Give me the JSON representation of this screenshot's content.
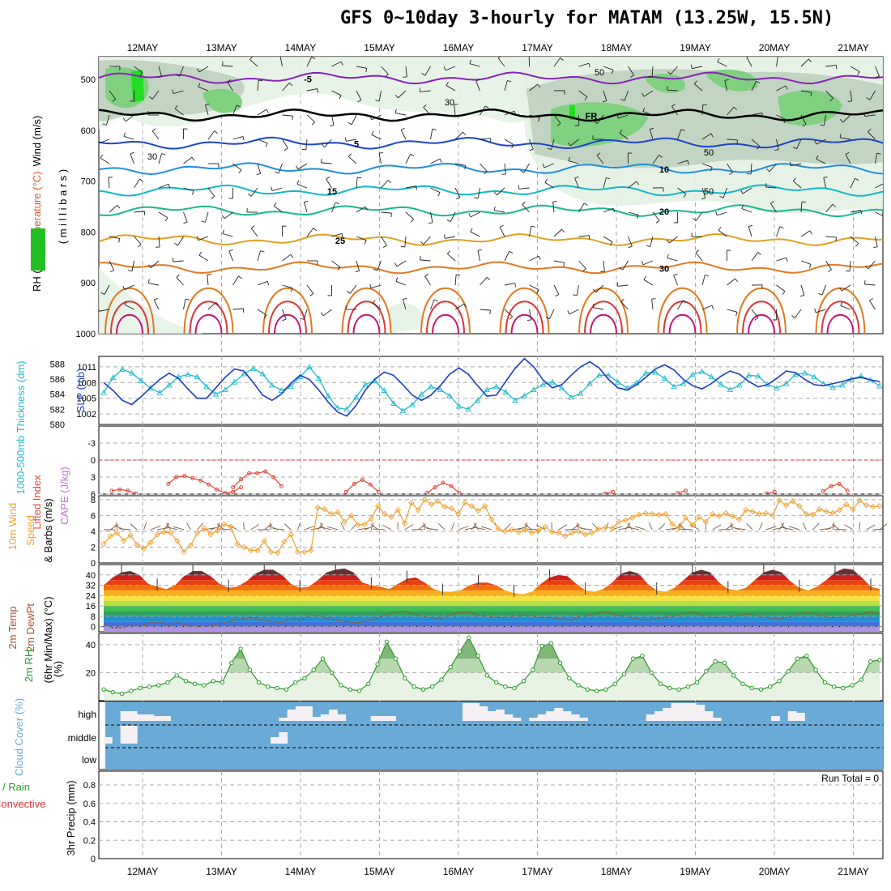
{
  "title": "GFS 0~10day 3-hourly for MATAM (13.25W, 15.5N)",
  "colors": {
    "rh_light": "#e4f1e4",
    "rh_mid": "#b9ccb9",
    "rh_dark": "#7fd07f",
    "rh_bright": "#22dd22",
    "slp": "#1c3cc8",
    "thickness": "#22bbcc",
    "lifted": "#e0483c",
    "cape": "#c070d0",
    "wind10": "#f0a030",
    "barb10": "#7a5a40",
    "rh2m": "#2a9a2a",
    "cloud": "#6aaad6",
    "precip_label": "#2a9a2a",
    "precip_conv": "#e03030"
  },
  "chart_data": [
    {
      "id": "upper-air",
      "type": "contour",
      "ylabel_parts": [
        "RH (%)",
        "Temperature (°C)",
        "Wind (m/s)"
      ],
      "ylabel_unit": "( m i l l i b a r s )",
      "date_labels": [
        "12MAY",
        "13MAY",
        "14MAY",
        "15MAY",
        "16MAY",
        "17MAY",
        "18MAY",
        "19MAY",
        "20MAY",
        "21MAY"
      ],
      "y_ticks": [
        500,
        600,
        700,
        800,
        900,
        1000
      ],
      "ylim": [
        455,
        1000
      ],
      "temperature_contours": [
        {
          "label": "-5",
          "level_mb": 497,
          "color": "#8822bb"
        },
        {
          "label": "FR",
          "level_mb": 570,
          "color": "#000000"
        },
        {
          "label": "5",
          "level_mb": 625,
          "color": "#1a44cc"
        },
        {
          "label": "10",
          "level_mb": 675,
          "color": "#1e90dd"
        },
        {
          "label": "15",
          "level_mb": 718,
          "color": "#10b8c8"
        },
        {
          "label": "20",
          "level_mb": 758,
          "color": "#18b890"
        },
        {
          "label": "25",
          "level_mb": 815,
          "color": "#e0a020"
        },
        {
          "label": "30",
          "level_mb": 870,
          "color": "#e07a20"
        }
      ],
      "rh_contour_labels": [
        "30",
        "50",
        "50",
        "50",
        "30"
      ]
    },
    {
      "id": "slp-thickness",
      "type": "line",
      "ylabel_left": "1000-500mb Thickness (dm)",
      "ylabel_right": "SLP (mb)",
      "left_ticks": [
        580,
        582,
        584,
        586,
        588
      ],
      "right_ticks": [
        1002,
        1005,
        1008,
        1011
      ],
      "thickness_ylim": [
        580,
        589
      ],
      "slp_ylim": [
        1000,
        1013
      ],
      "series": [
        {
          "name": "Thickness",
          "values": [
            584.2,
            586.2,
            587.3,
            586.8,
            585.8,
            584.8,
            584.2,
            585.2,
            586.3,
            586.6,
            586.3,
            585.0,
            584.0,
            584.6,
            585.6,
            586.7,
            587.4,
            586.7,
            585.2,
            584.5,
            585.0,
            586.3,
            587.6,
            586.1,
            583.8,
            582.2,
            582.0,
            583.6,
            585.3,
            585.8,
            584.5,
            582.8,
            581.8,
            582.6,
            584.0,
            585.0,
            584.6,
            583.8,
            582.4,
            582.0,
            583.2,
            584.6,
            585.0,
            584.3,
            583.2,
            583.8,
            584.6,
            585.3,
            585.6,
            584.8,
            583.6,
            584.1,
            585.4,
            586.5,
            586.5,
            585.6,
            584.8,
            585.5,
            586.8,
            586.9,
            586.1,
            585.0,
            585.4,
            586.6,
            587.0,
            586.3,
            585.3,
            584.6,
            585.2,
            586.5,
            586.4,
            585.3,
            584.8,
            585.4,
            586.6,
            586.8,
            586.3,
            585.4,
            584.9,
            585.2,
            586.0,
            586.4,
            585.9,
            585.1
          ]
        },
        {
          "name": "SLP",
          "values": [
            1008.0,
            1006.5,
            1004.6,
            1003.8,
            1005.3,
            1007.0,
            1008.6,
            1009.8,
            1008.8,
            1006.8,
            1005.0,
            1005.0,
            1007.0,
            1009.0,
            1010.6,
            1010.2,
            1008.0,
            1005.6,
            1004.6,
            1005.8,
            1007.8,
            1009.4,
            1008.6,
            1006.6,
            1004.3,
            1002.4,
            1001.6,
            1003.6,
            1006.6,
            1008.6,
            1010.0,
            1009.4,
            1007.6,
            1005.6,
            1004.6,
            1005.6,
            1007.4,
            1009.6,
            1010.8,
            1009.6,
            1007.4,
            1005.4,
            1005.6,
            1008.2,
            1010.7,
            1012.6,
            1011.0,
            1008.5,
            1007.0,
            1007.6,
            1009.4,
            1011.0,
            1012.0,
            1010.8,
            1008.6,
            1007.0,
            1006.6,
            1007.6,
            1009.0,
            1010.6,
            1011.4,
            1010.4,
            1008.6,
            1007.4,
            1006.8,
            1007.8,
            1009.2,
            1010.2,
            1009.6,
            1008.2,
            1007.2,
            1007.6,
            1008.8,
            1010.2,
            1009.9,
            1008.6,
            1007.6,
            1007.4,
            1007.8,
            1008.2,
            1008.7,
            1009.0,
            1008.5,
            1008.2
          ]
        }
      ]
    },
    {
      "id": "stability",
      "type": "line",
      "ylabel_parts": [
        "Lifted Index",
        "CAPE (J/kg)"
      ],
      "y_ticks": [
        -3,
        0,
        3,
        6
      ],
      "ylim": [
        -6,
        6
      ],
      "inverted": true,
      "zero_line": 0,
      "segments": [
        {
          "name": "Lifted Index",
          "x": [
            1,
            2,
            3,
            4
          ],
          "values": [
            5.4,
            5.2,
            5.4,
            5.9
          ]
        },
        {
          "name": "Lifted Index",
          "x": [
            8,
            9,
            10,
            11,
            12,
            13,
            14,
            15,
            16,
            17
          ],
          "values": [
            4.2,
            3.0,
            2.8,
            3.2,
            3.6,
            4.3,
            5.2,
            5.8,
            5.6,
            4.8
          ]
        },
        {
          "name": "Lifted Index",
          "x": [
            16,
            17,
            18,
            19,
            20,
            21,
            22
          ],
          "values": [
            4.8,
            3.4,
            2.3,
            2.3,
            2.0,
            3.0,
            4.6
          ]
        },
        {
          "name": "Lifted Index",
          "x": [
            30,
            31,
            32,
            33,
            34
          ],
          "values": [
            5.6,
            4.2,
            3.5,
            4.3,
            5.6
          ]
        },
        {
          "name": "Lifted Index",
          "x": [
            40,
            41,
            42,
            43,
            44
          ],
          "values": [
            5.8,
            4.8,
            4.0,
            4.6,
            5.8
          ]
        },
        {
          "name": "Lifted Index",
          "x": [
            62,
            63
          ],
          "values": [
            5.9,
            5.6
          ]
        },
        {
          "name": "Lifted Index",
          "x": [
            71,
            72
          ],
          "values": [
            5.8,
            5.4
          ]
        },
        {
          "name": "Lifted Index",
          "x": [
            82,
            83
          ],
          "values": [
            5.9,
            5.6
          ]
        },
        {
          "name": "Lifted Index",
          "x": [
            89,
            90,
            91,
            92
          ],
          "values": [
            5.5,
            4.6,
            4.2,
            5.4
          ]
        }
      ]
    },
    {
      "id": "wind10m",
      "type": "line",
      "ylabel_parts": [
        "10m Wind",
        "Speed",
        "& Barbs (m/s)"
      ],
      "y_ticks": [
        0,
        2,
        4,
        6,
        8
      ],
      "ylim": [
        0,
        8.5
      ],
      "series": [
        {
          "name": "10m wind speed",
          "values": [
            2.4,
            3.4,
            3.8,
            2.8,
            3.5,
            2.3,
            1.8,
            2.6,
            3.6,
            3.9,
            3.8,
            2.8,
            1.4,
            2.2,
            3.8,
            4.4,
            3.6,
            4.1,
            4.9,
            4.6,
            2.4,
            2.0,
            1.6,
            1.6,
            2.8,
            1.4,
            1.3,
            2.7,
            3.6,
            1.4,
            1.4,
            1.6,
            7.0,
            6.8,
            6.2,
            6.4,
            5.2,
            6.0,
            4.8,
            4.9,
            5.6,
            7.2,
            6.2,
            5.8,
            6.7,
            5.0,
            7.6,
            6.7,
            8.0,
            7.4,
            7.8,
            7.1,
            6.9,
            6.2,
            7.6,
            7.2,
            6.6,
            7.2,
            5.5,
            4.3,
            4.0,
            4.2,
            3.9,
            4.2,
            3.8,
            4.1,
            4.6,
            3.9,
            3.8,
            3.4,
            3.8,
            4.0,
            3.6,
            3.8,
            4.3,
            4.5,
            4.4,
            5.2,
            5.4,
            5.7,
            6.1,
            6.3,
            6.2,
            6.1,
            6.2,
            4.9,
            4.4,
            5.7,
            4.8,
            5.8,
            5.2,
            6.2,
            5.9,
            6.3,
            5.9,
            5.5,
            6.7,
            6.5,
            6.2,
            6.3,
            6.0,
            7.9,
            7.3,
            7.8,
            7.2,
            6.2,
            6.1,
            6.8,
            6.5,
            6.3,
            6.7,
            7.4,
            6.8,
            7.9,
            7.3,
            7.1,
            7.2
          ]
        }
      ]
    },
    {
      "id": "temp2m",
      "type": "area",
      "ylabel_parts": [
        "2m Temp",
        "2m DewPt",
        "(6hr Min/Max) (°C)"
      ],
      "y_ticks": [
        0,
        8,
        16,
        24,
        32,
        40
      ],
      "ylim": [
        -4,
        48
      ],
      "series": [
        {
          "name": "2m Temp",
          "values": [
            32,
            38,
            42,
            43,
            40,
            33,
            31,
            29,
            32,
            39,
            43,
            43,
            39,
            33,
            30,
            31,
            35,
            41,
            44,
            44,
            40,
            33,
            30,
            31,
            36,
            42,
            44,
            45,
            42,
            34,
            32,
            31,
            29,
            33,
            37,
            38,
            34,
            29,
            27,
            27,
            28,
            32,
            34,
            34,
            32,
            28,
            26,
            25,
            27,
            33,
            38,
            40,
            39,
            33,
            28,
            27,
            29,
            34,
            41,
            43,
            41,
            33,
            28,
            27,
            30,
            36,
            42,
            44,
            42,
            34,
            29,
            28,
            30,
            36,
            42,
            44,
            42,
            35,
            30,
            28,
            31,
            36,
            42,
            45,
            44,
            38,
            31,
            29
          ]
        },
        {
          "name": "2m DewPt",
          "values": [
            2,
            -1,
            -1,
            1,
            1,
            3,
            3,
            2,
            3,
            1,
            0,
            0,
            2,
            3,
            5,
            6,
            7,
            5,
            4,
            3,
            6,
            5,
            8,
            9,
            6,
            5,
            4,
            3,
            4,
            6,
            9,
            11,
            12,
            10,
            8,
            7,
            6,
            9,
            11,
            11,
            9,
            8,
            7,
            7,
            8,
            9,
            8,
            7,
            7,
            6,
            5,
            8,
            9,
            11,
            11,
            9,
            8,
            6,
            5,
            6,
            7,
            8,
            10,
            11,
            9,
            7,
            7,
            8,
            9,
            10,
            8,
            7,
            6,
            7,
            9,
            11,
            10,
            8,
            7,
            7,
            9,
            10,
            11,
            10
          ]
        }
      ]
    },
    {
      "id": "rh2m",
      "type": "area",
      "ylabel_parts": [
        "2m RH",
        "(%)"
      ],
      "y_ticks": [
        20,
        40
      ],
      "ylim": [
        0,
        48
      ],
      "series": [
        {
          "name": "2m RH",
          "values": [
            8,
            6,
            5,
            7,
            9,
            10,
            11,
            13,
            18,
            14,
            12,
            11,
            14,
            13,
            27,
            37,
            22,
            13,
            10,
            9,
            8,
            13,
            16,
            22,
            30,
            20,
            11,
            8,
            7,
            12,
            26,
            42,
            30,
            16,
            10,
            8,
            10,
            15,
            24,
            35,
            45,
            32,
            18,
            13,
            10,
            9,
            14,
            22,
            39,
            41,
            27,
            16,
            11,
            8,
            7,
            8,
            12,
            19,
            30,
            32,
            20,
            12,
            9,
            8,
            10,
            13,
            21,
            28,
            27,
            18,
            12,
            9,
            8,
            10,
            14,
            21,
            30,
            32,
            22,
            13,
            10,
            9,
            11,
            15,
            28,
            29
          ]
        }
      ]
    },
    {
      "id": "cloud",
      "type": "bar",
      "ylabel": "Cloud Cover (%)",
      "level_labels": [
        "high",
        "middle",
        "low"
      ],
      "high_bars": [
        0,
        0,
        12,
        12,
        8,
        8,
        6,
        6,
        0,
        0,
        0,
        0,
        0,
        0,
        0,
        0,
        0,
        0,
        0,
        0,
        0,
        4,
        14,
        18,
        18,
        5,
        8,
        14,
        8,
        0,
        0,
        0,
        6,
        6,
        6,
        0,
        0,
        0,
        0,
        0,
        0,
        0,
        0,
        22,
        22,
        18,
        12,
        14,
        8,
        4,
        0,
        4,
        8,
        12,
        16,
        12,
        8,
        4,
        0,
        0,
        0,
        0,
        0,
        0,
        0,
        8,
        12,
        16,
        22,
        22,
        22,
        20,
        12,
        4,
        0,
        0,
        0,
        0,
        0,
        0,
        6,
        0,
        12,
        10,
        0,
        0,
        0,
        0,
        0,
        0,
        0,
        0,
        0
      ],
      "middle_bars": [
        8,
        0,
        22,
        22,
        0,
        0,
        0,
        0,
        0,
        0,
        0,
        0,
        0,
        0,
        0,
        0,
        0,
        0,
        0,
        0,
        8,
        14,
        0,
        0,
        0,
        0,
        0,
        0,
        0,
        0,
        0,
        0,
        0,
        0,
        0,
        0,
        0,
        0,
        0,
        0,
        0,
        0,
        0,
        0,
        0,
        0,
        0,
        0,
        0,
        0,
        0,
        0,
        0,
        0,
        0,
        0,
        0,
        0,
        0,
        0,
        0,
        0,
        0,
        0,
        0,
        0,
        0,
        0,
        0,
        0,
        0,
        0,
        0,
        0,
        0,
        0,
        0,
        0,
        0,
        0,
        0,
        0,
        0,
        0,
        0,
        0,
        0
      ]
    },
    {
      "id": "precip",
      "type": "bar",
      "ylabel_parts": [
        "Total / Rain",
        "Convective",
        "3hr Precip (mm)"
      ],
      "y_ticks": [
        0,
        0.2,
        0.4,
        0.6,
        0.8
      ],
      "ylim": [
        0,
        0.95
      ],
      "run_total_label": "Run Total = 0",
      "values": []
    }
  ]
}
